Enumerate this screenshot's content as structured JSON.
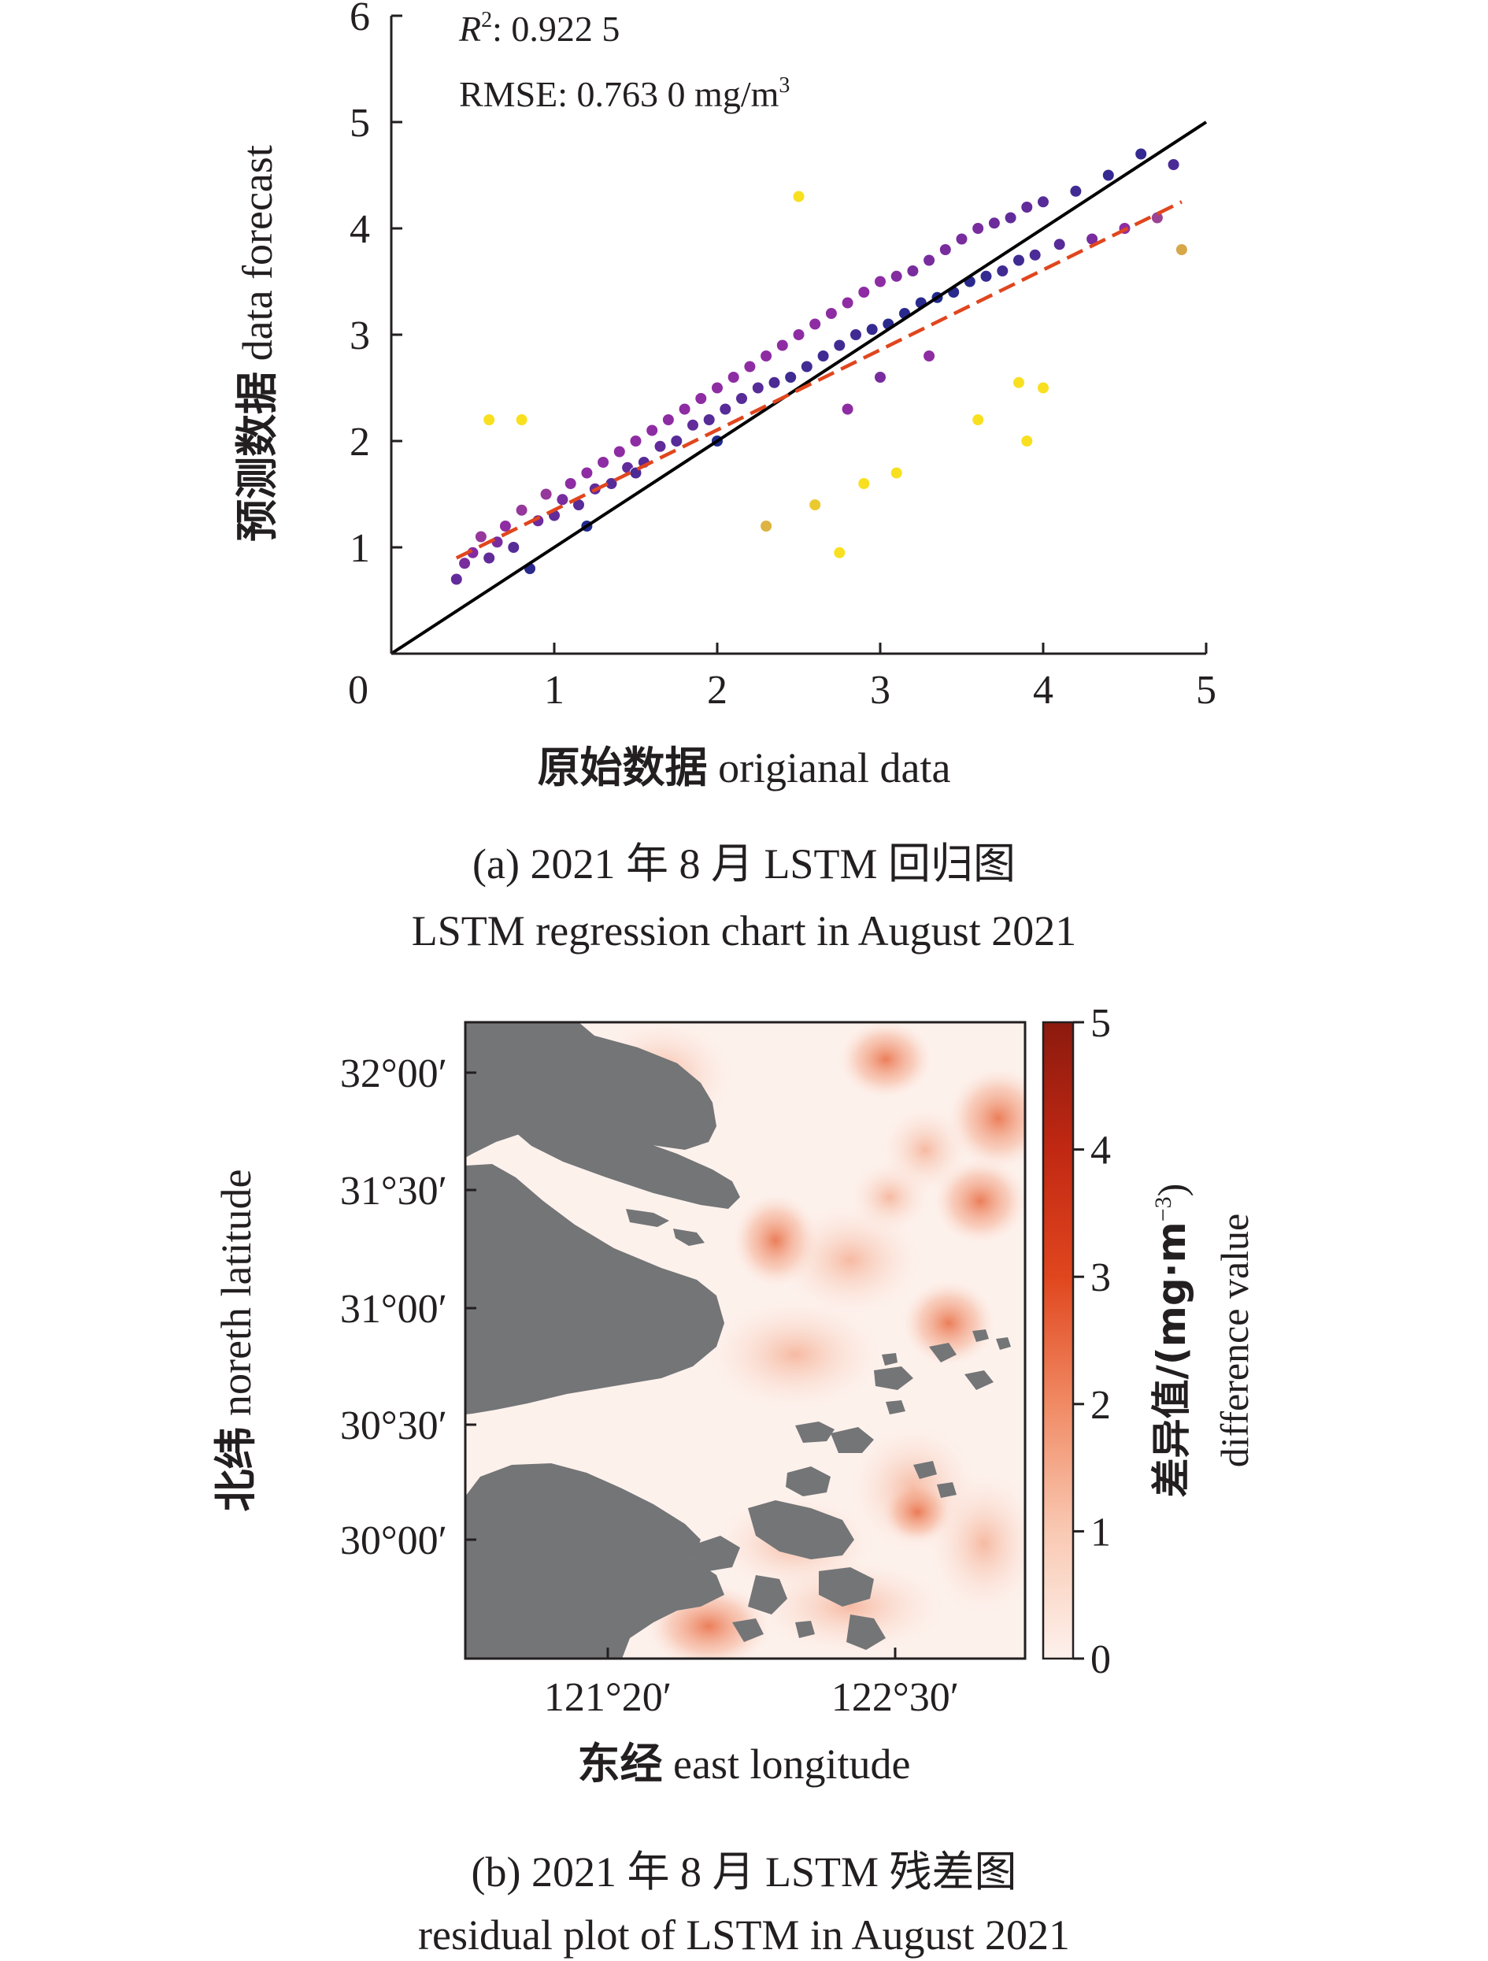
{
  "panel_a": {
    "r2_symbol": "R",
    "r2_sup": "2",
    "r2_rest": ": 0.922 5",
    "rmse_text": "RMSE: 0.763 0 mg/m",
    "rmse_sup": "3",
    "xlabel_cn": "原始数据",
    "xlabel_en": " origianal data",
    "ylabel_cn": "预测数据",
    "ylabel_en": " data forecast",
    "caption_line1": "(a) 2021 年 8 月 LSTM 回归图",
    "caption_line2": "LSTM regression chart in August 2021"
  },
  "panel_b": {
    "xlabel_cn": "东经",
    "xlabel_en": " east longitude",
    "ylabel_cn": "北纬",
    "ylabel_en": " noreth latitude",
    "colorbar_label_cn": "差异值/(mg·m",
    "colorbar_label_sup": "−3",
    "colorbar_label_close": ")",
    "colorbar_label_en": "difference value",
    "caption_line1": "(b) 2021 年 8 月 LSTM 残差图",
    "caption_line2": "residual plot of LSTM in August 2021"
  },
  "colors": {
    "points_low_error": "#1f2a8c",
    "points_mid_error": "#8e2ca3",
    "points_high_error": "#f8e020",
    "fit_line": "#e0461e",
    "identity_line": "#000000",
    "land": "#737577",
    "residual_low": "#fdf1ec",
    "residual_high": "#8b1a0e"
  },
  "chart_data": [
    {
      "type": "scatter",
      "xlim": [
        0,
        5
      ],
      "ylim": [
        0,
        6
      ],
      "x_ticks": [
        "0",
        "1",
        "2",
        "3",
        "4",
        "5"
      ],
      "y_ticks": [
        "1",
        "2",
        "3",
        "4",
        "5",
        "6"
      ],
      "r2": 0.9225,
      "rmse_mg_m3": 0.763,
      "identity_line": {
        "x": [
          0,
          5
        ],
        "y": [
          0,
          5
        ]
      },
      "fit_line": {
        "x": [
          0.4,
          4.85
        ],
        "y": [
          0.9,
          4.25
        ],
        "style": "dashed"
      },
      "points": [
        [
          0.4,
          0.7
        ],
        [
          0.45,
          0.85
        ],
        [
          0.5,
          0.95
        ],
        [
          0.55,
          1.1
        ],
        [
          0.6,
          0.9
        ],
        [
          0.65,
          1.05
        ],
        [
          0.7,
          1.2
        ],
        [
          0.75,
          1.0
        ],
        [
          0.8,
          1.35
        ],
        [
          0.85,
          0.8
        ],
        [
          0.9,
          1.25
        ],
        [
          0.95,
          1.5
        ],
        [
          1.0,
          1.3
        ],
        [
          1.05,
          1.45
        ],
        [
          1.1,
          1.6
        ],
        [
          1.15,
          1.4
        ],
        [
          1.2,
          1.7
        ],
        [
          1.25,
          1.55
        ],
        [
          1.3,
          1.8
        ],
        [
          1.35,
          1.6
        ],
        [
          1.4,
          1.9
        ],
        [
          1.45,
          1.75
        ],
        [
          1.5,
          2.0
        ],
        [
          1.55,
          1.8
        ],
        [
          1.6,
          2.1
        ],
        [
          1.65,
          1.95
        ],
        [
          1.7,
          2.2
        ],
        [
          1.75,
          2.0
        ],
        [
          1.8,
          2.3
        ],
        [
          1.85,
          2.15
        ],
        [
          1.9,
          2.4
        ],
        [
          1.95,
          2.2
        ],
        [
          2.0,
          2.5
        ],
        [
          2.05,
          2.3
        ],
        [
          2.1,
          2.6
        ],
        [
          2.15,
          2.4
        ],
        [
          2.2,
          2.7
        ],
        [
          2.25,
          2.5
        ],
        [
          2.3,
          2.8
        ],
        [
          2.35,
          2.55
        ],
        [
          2.4,
          2.9
        ],
        [
          2.45,
          2.6
        ],
        [
          2.5,
          3.0
        ],
        [
          2.55,
          2.7
        ],
        [
          2.6,
          3.1
        ],
        [
          2.65,
          2.8
        ],
        [
          2.7,
          3.2
        ],
        [
          2.75,
          2.9
        ],
        [
          2.8,
          3.3
        ],
        [
          2.85,
          3.0
        ],
        [
          2.9,
          3.4
        ],
        [
          2.95,
          3.05
        ],
        [
          3.0,
          3.5
        ],
        [
          3.05,
          3.1
        ],
        [
          3.1,
          3.55
        ],
        [
          3.15,
          3.2
        ],
        [
          3.2,
          3.6
        ],
        [
          3.25,
          3.3
        ],
        [
          3.3,
          3.7
        ],
        [
          3.35,
          3.35
        ],
        [
          3.4,
          3.8
        ],
        [
          3.45,
          3.4
        ],
        [
          3.5,
          3.9
        ],
        [
          3.55,
          3.5
        ],
        [
          3.6,
          4.0
        ],
        [
          3.65,
          3.55
        ],
        [
          3.7,
          4.05
        ],
        [
          3.75,
          3.6
        ],
        [
          3.8,
          4.1
        ],
        [
          3.85,
          3.7
        ],
        [
          3.9,
          4.2
        ],
        [
          3.95,
          3.75
        ],
        [
          4.0,
          4.25
        ],
        [
          4.1,
          3.85
        ],
        [
          4.2,
          4.35
        ],
        [
          4.3,
          3.9
        ],
        [
          4.4,
          4.5
        ],
        [
          4.5,
          4.0
        ],
        [
          4.6,
          4.7
        ],
        [
          4.7,
          4.1
        ],
        [
          4.8,
          4.6
        ],
        [
          4.85,
          3.8
        ],
        [
          0.6,
          2.2
        ],
        [
          0.8,
          2.2
        ],
        [
          2.5,
          4.3
        ],
        [
          3.9,
          2.0
        ],
        [
          3.85,
          2.55
        ],
        [
          2.75,
          0.95
        ],
        [
          2.3,
          1.2
        ],
        [
          2.6,
          1.4
        ],
        [
          2.9,
          1.6
        ],
        [
          3.1,
          1.7
        ],
        [
          3.6,
          2.2
        ],
        [
          4.0,
          2.5
        ],
        [
          1.5,
          1.7
        ],
        [
          2.0,
          2.0
        ],
        [
          2.8,
          2.3
        ],
        [
          3.3,
          2.8
        ],
        [
          1.2,
          1.2
        ],
        [
          3.0,
          2.6
        ]
      ]
    },
    {
      "type": "heatmap",
      "x_tick_labels": [
        "121°20′",
        "122°30′"
      ],
      "y_tick_labels": [
        "32°00′",
        "31°30′",
        "31°00′",
        "30°30′",
        "30°00′"
      ],
      "colorbar_range": [
        0,
        5
      ],
      "colorbar_ticks": [
        "0",
        "1",
        "2",
        "3",
        "4",
        "5"
      ],
      "hotspots": [
        {
          "lon": "122°30′",
          "lat": "32°05′",
          "value": 2.5
        },
        {
          "lon": "122°50′",
          "lat": "31°48′",
          "value": 3.2
        },
        {
          "lon": "122°45′",
          "lat": "31°27′",
          "value": 3.0
        },
        {
          "lon": "121°55′",
          "lat": "31°20′",
          "value": 2.6
        },
        {
          "lon": "122°40′",
          "lat": "31°00′",
          "value": 2.5
        },
        {
          "lon": "122°35′",
          "lat": "30°05′",
          "value": 2.7
        },
        {
          "lon": "122°20′",
          "lat": "29°48′",
          "value": 1.9
        }
      ]
    }
  ]
}
